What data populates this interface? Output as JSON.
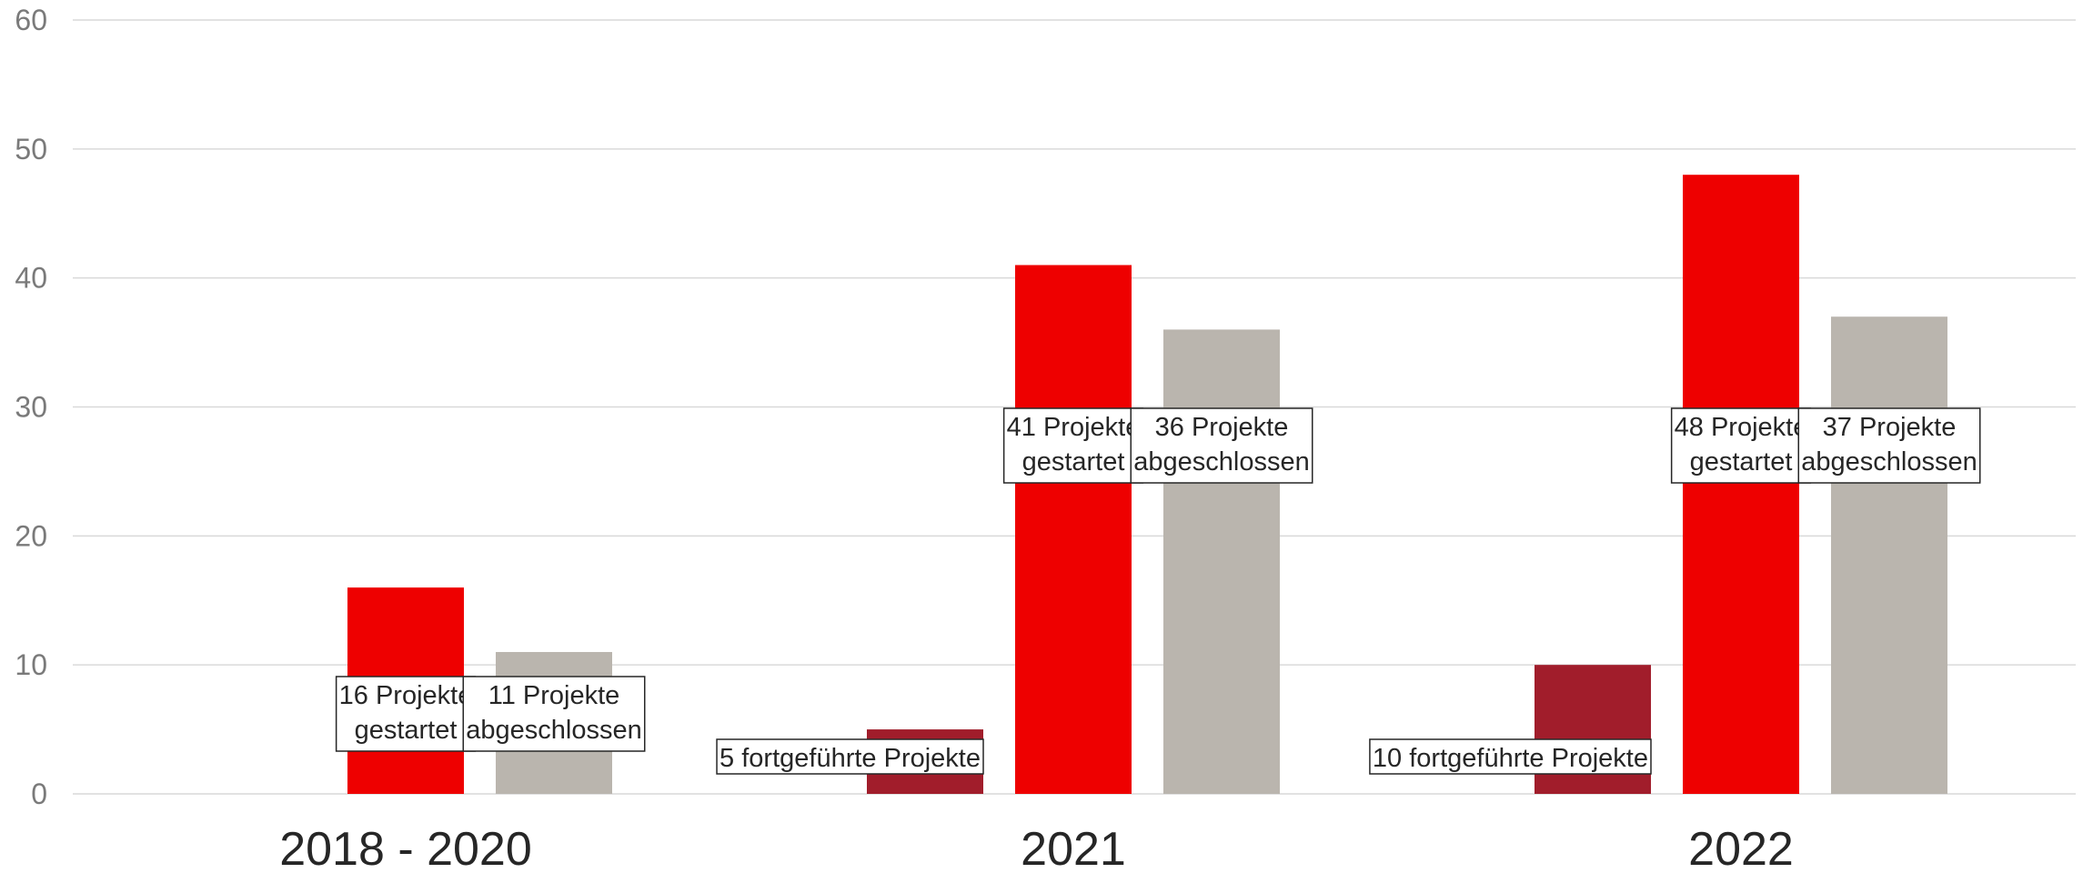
{
  "chart_data": {
    "type": "bar",
    "categories": [
      "2018 - 2020",
      "2021",
      "2022"
    ],
    "ylim": [
      0,
      60
    ],
    "yticks": [
      0,
      10,
      20,
      30,
      40,
      50,
      60
    ],
    "grid": true,
    "series": [
      {
        "key": "fortgefuehrt",
        "color": "#a11d2b",
        "values": [
          null,
          5,
          10
        ],
        "labels": [
          null,
          "5 fortgeführte Projekte",
          "10 fortgeführte Projekte"
        ]
      },
      {
        "key": "gestartet",
        "color": "#ee0000",
        "values": [
          16,
          41,
          48
        ],
        "labels": [
          "16 Projekte\ngestartet",
          "41 Projekte\ngestartet",
          "48 Projekte\ngestartet"
        ]
      },
      {
        "key": "abgeschlossen",
        "color": "#bab5ae",
        "values": [
          11,
          36,
          37
        ],
        "labels": [
          "11 Projekte\nabgeschlossen",
          "36 Projekte\nabgeschlossen",
          "37 Projekte\nabgeschlossen"
        ]
      }
    ]
  }
}
